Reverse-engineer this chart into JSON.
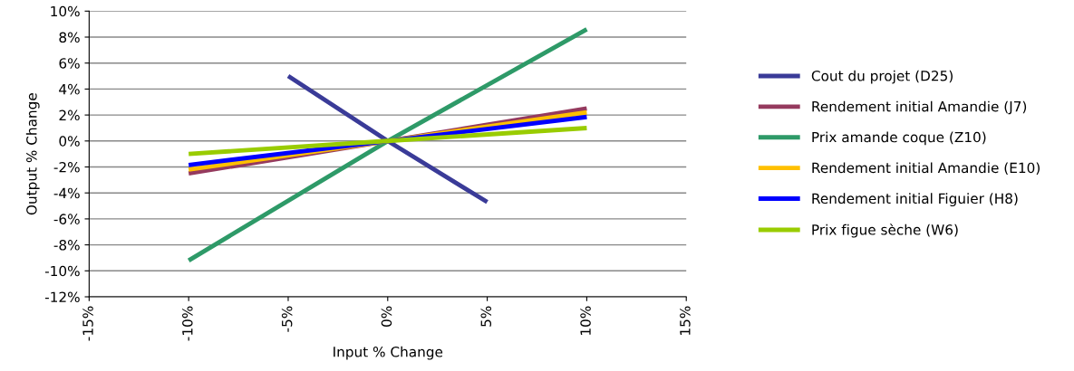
{
  "chart_data": {
    "type": "line",
    "xlabel": "Input % Change",
    "ylabel": "Output % Change",
    "xlim": [
      -15,
      15
    ],
    "xticks": [
      {
        "value": -15,
        "label": "-15%"
      },
      {
        "value": -10,
        "label": "-10%"
      },
      {
        "value": -5,
        "label": "-5%"
      },
      {
        "value": 0,
        "label": "0%"
      },
      {
        "value": 5,
        "label": "5%"
      },
      {
        "value": 10,
        "label": "10%"
      },
      {
        "value": 15,
        "label": "15%"
      }
    ],
    "ylim": [
      -12,
      10
    ],
    "yticks": [
      {
        "value": -12,
        "label": "-12%"
      },
      {
        "value": -10,
        "label": "-10%"
      },
      {
        "value": -8,
        "label": "-8%"
      },
      {
        "value": -6,
        "label": "-6%"
      },
      {
        "value": -4,
        "label": "-4%"
      },
      {
        "value": -2,
        "label": "-2%"
      },
      {
        "value": 0,
        "label": "0%"
      },
      {
        "value": 2,
        "label": "2%"
      },
      {
        "value": 4,
        "label": "4%"
      },
      {
        "value": 6,
        "label": "6%"
      },
      {
        "value": 8,
        "label": "8%"
      },
      {
        "value": 10,
        "label": "10%"
      }
    ],
    "grid": "y",
    "legend": "right",
    "marker": "none",
    "line_style": "solid",
    "series": [
      {
        "name": "Cout du projet (D25)",
        "color": "#3a3b98",
        "x": [
          -5,
          0,
          5
        ],
        "values": [
          5.0,
          0,
          -4.7
        ]
      },
      {
        "name": "Rendement initial Amandie (J7)",
        "color": "#953a5e",
        "x": [
          -10,
          0,
          10
        ],
        "values": [
          -2.5,
          0,
          2.5
        ]
      },
      {
        "name": "Prix amande coque (Z10)",
        "color": "#2e9a68",
        "x": [
          -10,
          0,
          10
        ],
        "values": [
          -9.2,
          0,
          8.6
        ]
      },
      {
        "name": "Rendement initial Amandie (E10)",
        "color": "#ffc000",
        "x": [
          -10,
          0,
          10
        ],
        "values": [
          -2.2,
          0,
          2.2
        ]
      },
      {
        "name": "Rendement initial Figuier (H8)",
        "color": "#0000ff",
        "x": [
          -10,
          0,
          10
        ],
        "values": [
          -1.85,
          0,
          1.85
        ]
      },
      {
        "name": "Prix figue sèche (W6)",
        "color": "#99cc00",
        "x": [
          -10,
          0,
          10
        ],
        "values": [
          -1.0,
          0,
          1.0
        ]
      }
    ]
  }
}
